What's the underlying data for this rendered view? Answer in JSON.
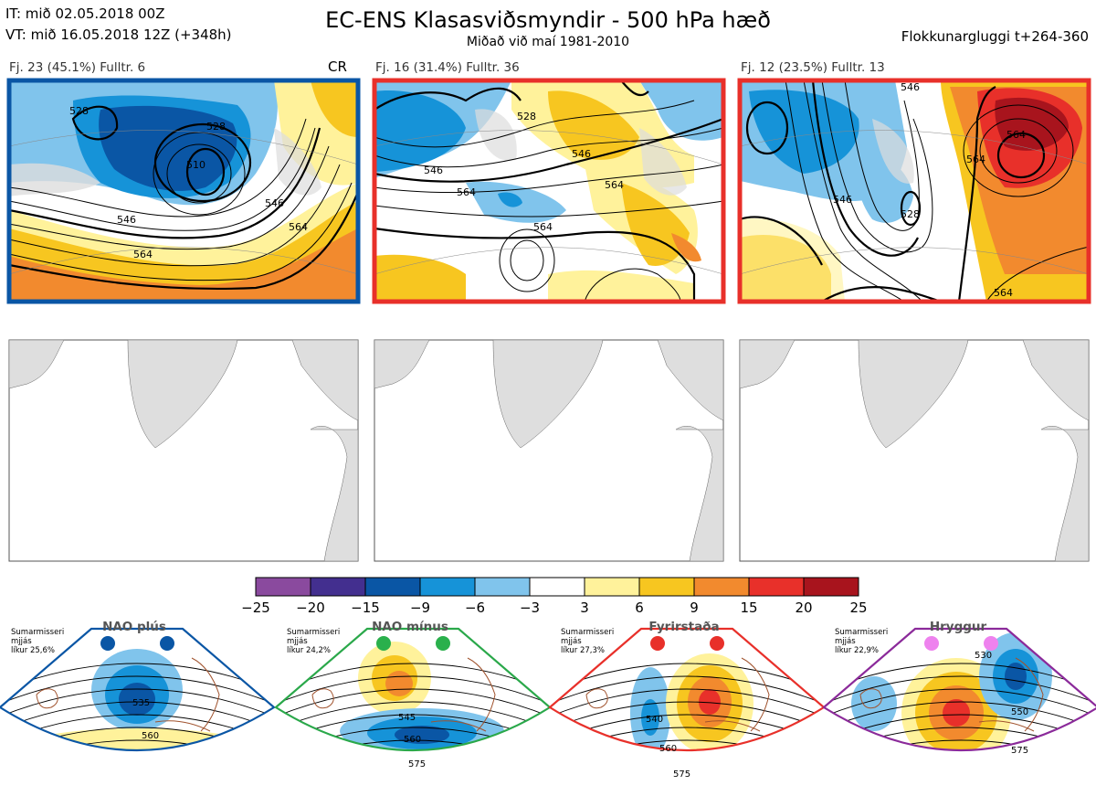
{
  "header": {
    "it_line": "IT: mið 02.05.2018 00Z",
    "vt_line": "VT: mið 16.05.2018 12Z  (+348h)",
    "title": "EC-ENS Klasasviðsmyndir - 500 hPa hæð",
    "subtitle": "Miðað við maí 1981-2010",
    "window": "Flokkunargluggi t+264-360"
  },
  "clusters": [
    {
      "label": "Fj. 23 (45.1%)   Fulltr. 6",
      "tag": "CR",
      "border": "#0a56a5",
      "contours": [
        "528",
        "528",
        "510",
        "546",
        "546",
        "564",
        "564"
      ]
    },
    {
      "label": "Fj. 16 (31.4%)   Fulltr. 36",
      "tag": "",
      "border": "#e8302a",
      "contours": [
        "528",
        "546",
        "546",
        "564",
        "564",
        "564"
      ]
    },
    {
      "label": "Fj. 12 (23.5%)   Fulltr. 13",
      "tag": "",
      "border": "#e8302a",
      "contours": [
        "546",
        "564",
        "546",
        "528",
        "564",
        "564"
      ]
    }
  ],
  "colorbar": {
    "ticks": [
      "−25",
      "−20",
      "−15",
      "−9",
      "−6",
      "−3",
      "3",
      "6",
      "9",
      "15",
      "20",
      "25"
    ],
    "colors": [
      "#8a4a9e",
      "#432f8f",
      "#0a56a5",
      "#1693d8",
      "#80c4ec",
      "#ffffff",
      "#fff29b",
      "#f7c620",
      "#f28a2e",
      "#e8302a",
      "#a8141d"
    ]
  },
  "regimes": [
    {
      "name": "NAO plús",
      "season": "Sumarmisseri",
      "mid": "mjjás",
      "prob": "líkur 25,6%",
      "color": "#0a56a5",
      "dot": "#0a56a5",
      "labels": [
        "535",
        "560"
      ]
    },
    {
      "name": "NAO mínus",
      "season": "Sumarmisseri",
      "mid": "mjjás",
      "prob": "líkur 24,2%",
      "color": "#2aa84a",
      "dot": "#2ab04c",
      "labels": [
        "545",
        "560",
        "575"
      ]
    },
    {
      "name": "Fyrirstaða",
      "season": "Sumarmisseri",
      "mid": "mjjás",
      "prob": "líkur 27,3%",
      "color": "#e8302a",
      "dot": "#e8302a",
      "labels": [
        "540",
        "560",
        "575"
      ]
    },
    {
      "name": "Hryggur",
      "season": "Sumarmisseri",
      "mid": "mjjás",
      "prob": "líkur 22,9%",
      "color": "#8b2a9a",
      "dot": "#ee82ee",
      "labels": [
        "530",
        "550",
        "575"
      ]
    }
  ]
}
